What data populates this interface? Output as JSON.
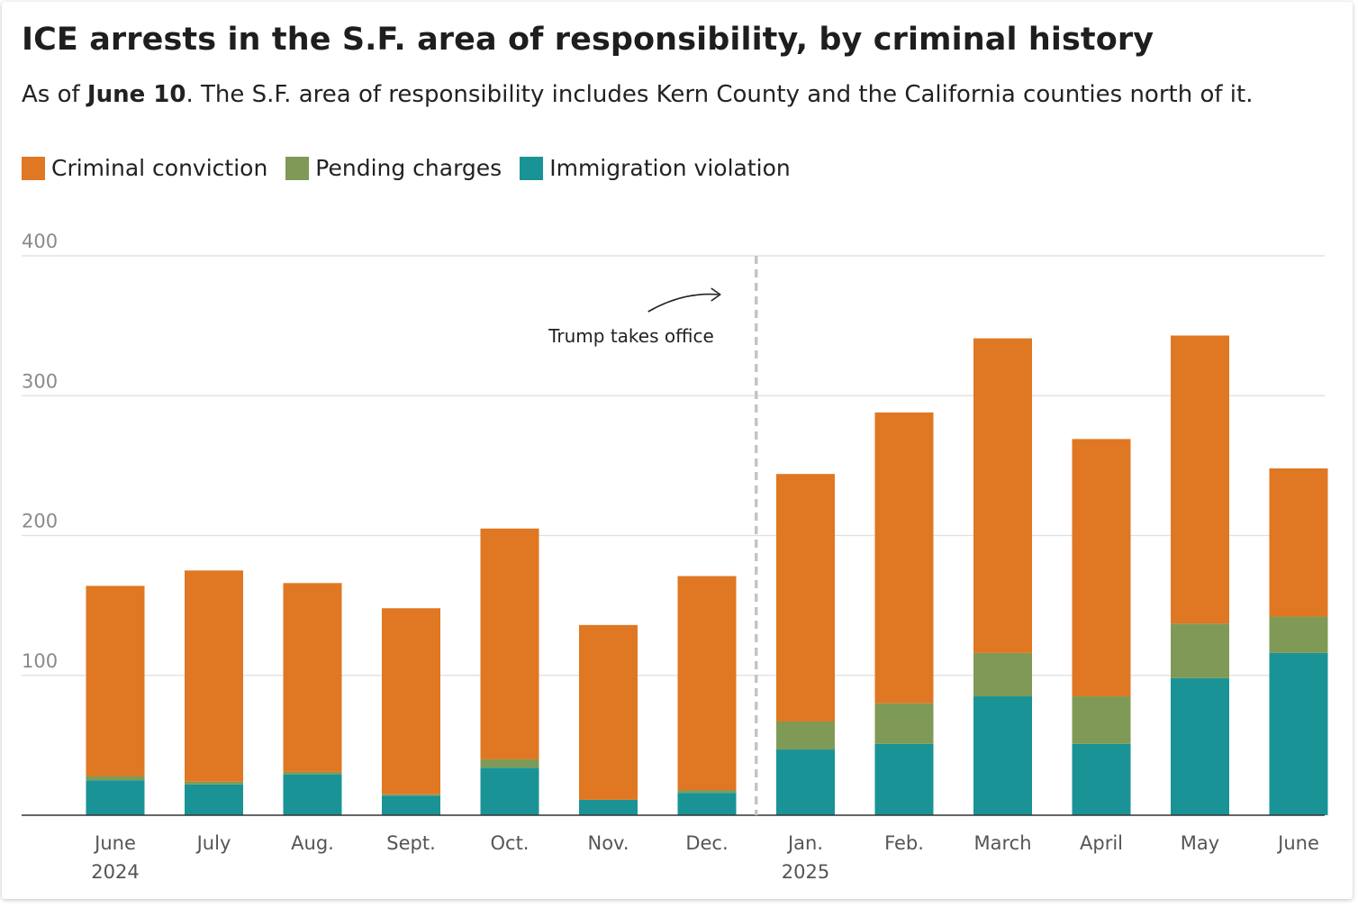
{
  "header": {
    "title": "ICE arrests in the S.F. area of responsibility, by criminal history",
    "subtitle_prefix": "As of ",
    "subtitle_bold": "June 10",
    "subtitle_rest": ". The S.F. area of responsibility includes Kern County and the California counties north of it."
  },
  "colors": {
    "criminal_conviction": "#e07722",
    "pending_charges": "#7f9a56",
    "immigration_violation": "#1a9396"
  },
  "legend": [
    {
      "label": "Criminal conviction",
      "color": "#e07722"
    },
    {
      "label": "Pending charges",
      "color": "#7f9a56"
    },
    {
      "label": "Immigration violation",
      "color": "#1a9396"
    }
  ],
  "chart_data": {
    "type": "bar",
    "stacked": true,
    "title": "ICE arrests in the S.F. area of responsibility, by criminal history",
    "categories": [
      "June",
      "July",
      "Aug.",
      "Sept.",
      "Oct.",
      "Nov.",
      "Dec.",
      "Jan.",
      "Feb.",
      "March",
      "April",
      "May",
      "June"
    ],
    "category_sublabels": [
      "2024",
      "",
      "",
      "",
      "",
      "",
      "",
      "2025",
      "",
      "",
      "",
      "",
      ""
    ],
    "series": [
      {
        "name": "Immigration violation",
        "values": [
          25,
          22,
          29,
          14,
          34,
          11,
          16,
          47,
          51,
          85,
          51,
          98,
          116
        ]
      },
      {
        "name": "Pending charges",
        "values": [
          3,
          2,
          2,
          1,
          6,
          0,
          2,
          20,
          29,
          31,
          34,
          39,
          26
        ]
      },
      {
        "name": "Criminal conviction",
        "values": [
          136,
          151,
          135,
          133,
          165,
          125,
          153,
          177,
          208,
          225,
          184,
          206,
          106
        ]
      }
    ],
    "ylim": [
      0,
      400
    ],
    "yticks": [
      100,
      200,
      300,
      400
    ],
    "xlabel": "",
    "ylabel": "",
    "annotation": {
      "text": "Trump takes office",
      "between": [
        "Dec.",
        "Jan."
      ]
    }
  }
}
